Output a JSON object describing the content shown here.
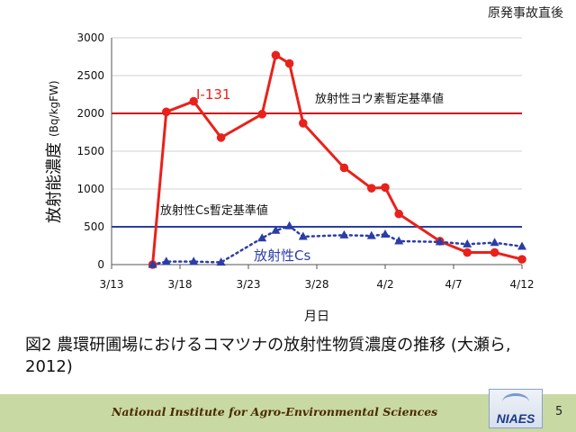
{
  "corner_label": "原発事故直後",
  "caption": "図2 農環研圃場におけるコマツナの放射性物質濃度の推移 (大瀬ら, 2012)",
  "footer": {
    "institute": "National Institute for Agro-Environmental Sciences",
    "logo": "NIAES",
    "page_number": "5"
  },
  "colors": {
    "i131": "#e8221b",
    "cs": "#2b3da8",
    "limit_i": "#cc1111",
    "limit_cs": "#2a3f9e"
  },
  "chart_data": {
    "type": "line",
    "xlabel": "月日",
    "ylabel": "放射能濃度",
    "ylabel_unit": "(Bq/kgFW)",
    "x_ticks": [
      "3/13",
      "3/18",
      "3/23",
      "3/28",
      "4/2",
      "4/7",
      "4/12"
    ],
    "xlim": [
      "2011-03-13",
      "2011-04-12"
    ],
    "ylim": [
      0,
      3000
    ],
    "y_ticks": [
      0,
      500,
      1000,
      1500,
      2000,
      2500,
      3000
    ],
    "grid": "horizontal",
    "series": [
      {
        "name": "I-131",
        "style": "solid",
        "marker": "circle",
        "x": [
          "2011-03-16",
          "2011-03-17",
          "2011-03-19",
          "2011-03-21",
          "2011-03-24",
          "2011-03-25",
          "2011-03-26",
          "2011-03-27",
          "2011-03-30",
          "2011-04-01",
          "2011-04-02",
          "2011-04-03",
          "2011-04-06",
          "2011-04-08",
          "2011-04-10",
          "2011-04-12"
        ],
        "y": [
          0,
          2020,
          2160,
          1680,
          1990,
          2770,
          2660,
          1870,
          1280,
          1010,
          1020,
          670,
          310,
          160,
          160,
          70
        ]
      },
      {
        "name": "放射性Cs",
        "style": "dotted",
        "marker": "triangle",
        "x": [
          "2011-03-16",
          "2011-03-17",
          "2011-03-19",
          "2011-03-21",
          "2011-03-24",
          "2011-03-25",
          "2011-03-26",
          "2011-03-27",
          "2011-03-30",
          "2011-04-01",
          "2011-04-02",
          "2011-04-03",
          "2011-04-06",
          "2011-04-08",
          "2011-04-10",
          "2011-04-12"
        ],
        "y": [
          0,
          40,
          40,
          30,
          350,
          450,
          510,
          370,
          390,
          380,
          400,
          310,
          300,
          270,
          290,
          240
        ]
      }
    ],
    "reference_lines": [
      {
        "label": "放射性ヨウ素暫定基準値",
        "y": 2000
      },
      {
        "label": "放射性Cs暫定基準値",
        "y": 500
      }
    ]
  }
}
